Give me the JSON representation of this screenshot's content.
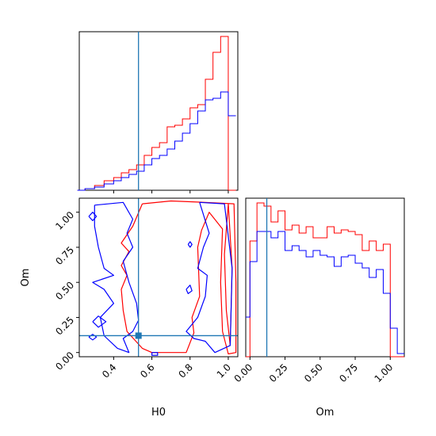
{
  "chart_data": [
    {
      "type": "histogram-step",
      "panel": "H0-marginal",
      "xlim": [
        0.22,
        1.05
      ],
      "truth": 0.53,
      "x_ticks": [
        0.4,
        0.6,
        0.8,
        1.0
      ],
      "bin_edges": [
        0.21,
        0.25,
        0.3,
        0.35,
        0.4,
        0.44,
        0.48,
        0.52,
        0.56,
        0.6,
        0.64,
        0.68,
        0.72,
        0.76,
        0.8,
        0.84,
        0.88,
        0.92,
        0.96,
        1.0,
        1.04
      ],
      "series": [
        {
          "color": "#ff0000",
          "values": [
            0.0,
            0.01,
            0.03,
            0.06,
            0.08,
            0.11,
            0.13,
            0.16,
            0.22,
            0.27,
            0.3,
            0.4,
            0.41,
            0.45,
            0.52,
            0.54,
            0.7,
            0.87,
            0.97,
            0.0
          ]
        },
        {
          "color": "#0000ff",
          "values": [
            0.0,
            0.01,
            0.02,
            0.04,
            0.06,
            0.08,
            0.1,
            0.12,
            0.16,
            0.2,
            0.22,
            0.26,
            0.31,
            0.36,
            0.42,
            0.5,
            0.57,
            0.58,
            0.62,
            0.47
          ]
        }
      ]
    },
    {
      "type": "contour",
      "panel": "H0-Om-joint",
      "xlabel": "H0",
      "ylabel": "Om",
      "xlim": [
        0.22,
        1.05
      ],
      "ylim": [
        -0.03,
        1.1
      ],
      "x_ticks": [
        0.4,
        0.6,
        0.8,
        1.0
      ],
      "y_ticks": [
        0.0,
        0.25,
        0.5,
        0.75,
        1.0
      ],
      "x_tick_labels": [
        "0.4",
        "0.6",
        "0.8",
        "1.0"
      ],
      "y_tick_labels": [
        "0.00",
        "0.25",
        "0.50",
        "0.75",
        "1.00"
      ],
      "truth": {
        "x": 0.53,
        "y": 0.12
      },
      "truth_color": "#1f77b4",
      "series": [
        {
          "color": "#ff0000",
          "contours": [
            [
              [
                0.55,
                1.06
              ],
              [
                0.7,
                1.08
              ],
              [
                0.88,
                1.07
              ],
              [
                1.03,
                1.06
              ],
              [
                1.04,
                0.5
              ],
              [
                1.04,
                0.0
              ],
              [
                1.0,
                -0.01
              ],
              [
                0.97,
                0.15
              ],
              [
                0.96,
                0.5
              ],
              [
                0.97,
                0.88
              ],
              [
                0.9,
                1.0
              ],
              [
                0.86,
                0.87
              ],
              [
                0.84,
                0.75
              ],
              [
                0.85,
                0.4
              ],
              [
                0.81,
                0.25
              ],
              [
                0.82,
                0.14
              ],
              [
                0.78,
                0.0
              ],
              [
                0.6,
                0.0
              ],
              [
                0.55,
                0.03
              ],
              [
                0.47,
                0.15
              ],
              [
                0.45,
                0.3
              ],
              [
                0.44,
                0.45
              ],
              [
                0.47,
                0.55
              ],
              [
                0.44,
                0.62
              ],
              [
                0.48,
                0.72
              ],
              [
                0.44,
                0.78
              ],
              [
                0.5,
                0.9
              ],
              [
                0.55,
                1.06
              ]
            ],
            [
              [
                1.0,
                1.06
              ],
              [
                1.02,
                0.6
              ],
              [
                1.01,
                0.05
              ],
              [
                0.99,
                0.3
              ],
              [
                0.98,
                0.7
              ],
              [
                1.0,
                1.06
              ]
            ]
          ]
        },
        {
          "color": "#0000ff",
          "contours": [
            [
              [
                0.3,
                1.05
              ],
              [
                0.45,
                1.07
              ],
              [
                0.5,
                0.95
              ],
              [
                0.47,
                0.85
              ],
              [
                0.5,
                0.75
              ],
              [
                0.45,
                0.65
              ],
              [
                0.48,
                0.5
              ],
              [
                0.52,
                0.35
              ],
              [
                0.53,
                0.23
              ],
              [
                0.5,
                0.15
              ],
              [
                0.45,
                0.1
              ],
              [
                0.48,
                0.0
              ],
              [
                0.42,
                0.03
              ],
              [
                0.35,
                0.12
              ],
              [
                0.33,
                0.25
              ],
              [
                0.4,
                0.35
              ],
              [
                0.35,
                0.45
              ],
              [
                0.29,
                0.5
              ],
              [
                0.4,
                0.55
              ],
              [
                0.35,
                0.6
              ],
              [
                0.32,
                0.75
              ],
              [
                0.3,
                0.9
              ],
              [
                0.3,
                1.05
              ]
            ],
            [
              [
                0.85,
                1.07
              ],
              [
                0.98,
                1.06
              ],
              [
                1.02,
                0.6
              ],
              [
                1.01,
                0.05
              ],
              [
                0.93,
                0.0
              ],
              [
                0.88,
                0.08
              ],
              [
                0.82,
                0.1
              ],
              [
                0.78,
                0.15
              ],
              [
                0.84,
                0.25
              ],
              [
                0.88,
                0.4
              ],
              [
                0.89,
                0.55
              ],
              [
                0.84,
                0.6
              ],
              [
                0.87,
                0.75
              ],
              [
                0.9,
                0.85
              ],
              [
                0.85,
                1.07
              ]
            ],
            [
              [
                0.27,
                0.97
              ],
              [
                0.29,
                1.0
              ],
              [
                0.31,
                0.97
              ],
              [
                0.29,
                0.94
              ],
              [
                0.27,
                0.97
              ]
            ],
            [
              [
                0.29,
                0.22
              ],
              [
                0.32,
                0.26
              ],
              [
                0.36,
                0.22
              ],
              [
                0.32,
                0.18
              ],
              [
                0.29,
                0.22
              ]
            ],
            [
              [
                0.27,
                0.11
              ],
              [
                0.29,
                0.13
              ],
              [
                0.31,
                0.11
              ],
              [
                0.29,
                0.09
              ],
              [
                0.27,
                0.11
              ]
            ],
            [
              [
                0.6,
                0.0
              ],
              [
                0.63,
                0.0
              ],
              [
                0.63,
                -0.02
              ],
              [
                0.6,
                -0.02
              ],
              [
                0.6,
                0.0
              ]
            ],
            [
              [
                0.78,
                0.45
              ],
              [
                0.8,
                0.48
              ],
              [
                0.81,
                0.44
              ],
              [
                0.79,
                0.42
              ],
              [
                0.78,
                0.45
              ]
            ],
            [
              [
                0.79,
                0.77
              ],
              [
                0.8,
                0.79
              ],
              [
                0.81,
                0.77
              ],
              [
                0.8,
                0.75
              ],
              [
                0.79,
                0.77
              ]
            ]
          ]
        }
      ]
    },
    {
      "type": "histogram-step",
      "panel": "Om-marginal",
      "xlabel": "Om",
      "xlim": [
        -0.03,
        1.1
      ],
      "truth": 0.12,
      "x_ticks": [
        0.0,
        0.25,
        0.5,
        0.75,
        1.0
      ],
      "x_tick_labels": [
        "0.00",
        "0.25",
        "0.50",
        "0.75",
        "1.00"
      ],
      "bin_edges": [
        -0.03,
        0.0,
        0.05,
        0.1,
        0.15,
        0.2,
        0.25,
        0.3,
        0.35,
        0.4,
        0.45,
        0.5,
        0.55,
        0.6,
        0.65,
        0.7,
        0.75,
        0.8,
        0.85,
        0.9,
        0.95,
        1.0,
        1.05,
        1.1
      ],
      "series": [
        {
          "color": "#ff0000",
          "values": [
            0.0,
            0.73,
            0.97,
            0.95,
            0.85,
            0.92,
            0.8,
            0.83,
            0.78,
            0.82,
            0.75,
            0.75,
            0.82,
            0.78,
            0.8,
            0.79,
            0.77,
            0.67,
            0.73,
            0.67,
            0.71,
            0.0,
            0.0
          ]
        },
        {
          "color": "#0000ff",
          "values": [
            0.25,
            0.6,
            0.79,
            0.79,
            0.75,
            0.79,
            0.67,
            0.7,
            0.67,
            0.63,
            0.67,
            0.64,
            0.63,
            0.57,
            0.63,
            0.64,
            0.59,
            0.56,
            0.5,
            0.55,
            0.4,
            0.18,
            0.02
          ]
        }
      ]
    }
  ]
}
